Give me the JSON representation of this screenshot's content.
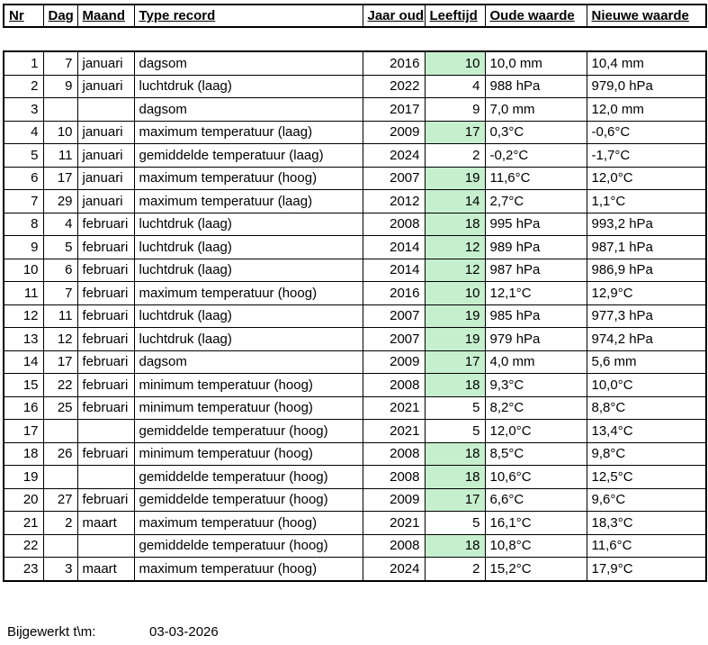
{
  "table": {
    "columns": [
      "Nr",
      "Dag",
      "Maand",
      "Type record",
      "Jaar oud",
      "Leeftijd",
      "Oude waarde",
      "Nieuwe waarde"
    ],
    "rows": [
      {
        "nr": "1",
        "dag": "7",
        "maand": "januari",
        "type_record": "dagsom",
        "jaar_oud": "2016",
        "leeftijd": "10",
        "leeftijd_gemarkeerd": true,
        "oude_waarde": "10,0 mm",
        "nieuwe_waarde": "10,4 mm"
      },
      {
        "nr": "2",
        "dag": "9",
        "maand": "januari",
        "type_record": "luchtdruk (laag)",
        "jaar_oud": "2022",
        "leeftijd": "4",
        "leeftijd_gemarkeerd": false,
        "oude_waarde": "988 hPa",
        "nieuwe_waarde": "979,0 hPa"
      },
      {
        "nr": "3",
        "dag": "",
        "maand": "",
        "type_record": "dagsom",
        "jaar_oud": "2017",
        "leeftijd": "9",
        "leeftijd_gemarkeerd": false,
        "oude_waarde": "7,0 mm",
        "nieuwe_waarde": "12,0 mm"
      },
      {
        "nr": "4",
        "dag": "10",
        "maand": "januari",
        "type_record": "maximum temperatuur (laag)",
        "jaar_oud": "2009",
        "leeftijd": "17",
        "leeftijd_gemarkeerd": true,
        "oude_waarde": "0,3°C",
        "nieuwe_waarde": "-0,6°C"
      },
      {
        "nr": "5",
        "dag": "11",
        "maand": "januari",
        "type_record": "gemiddelde temperatuur (laag)",
        "jaar_oud": "2024",
        "leeftijd": "2",
        "leeftijd_gemarkeerd": false,
        "oude_waarde": "-0,2°C",
        "nieuwe_waarde": "-1,7°C"
      },
      {
        "nr": "6",
        "dag": "17",
        "maand": "januari",
        "type_record": "maximum temperatuur (hoog)",
        "jaar_oud": "2007",
        "leeftijd": "19",
        "leeftijd_gemarkeerd": true,
        "oude_waarde": "11,6°C",
        "nieuwe_waarde": "12,0°C"
      },
      {
        "nr": "7",
        "dag": "29",
        "maand": "januari",
        "type_record": "maximum temperatuur (laag)",
        "jaar_oud": "2012",
        "leeftijd": "14",
        "leeftijd_gemarkeerd": true,
        "oude_waarde": "2,7°C",
        "nieuwe_waarde": "1,1°C"
      },
      {
        "nr": "8",
        "dag": "4",
        "maand": "februari",
        "type_record": "luchtdruk (laag)",
        "jaar_oud": "2008",
        "leeftijd": "18",
        "leeftijd_gemarkeerd": true,
        "oude_waarde": "995 hPa",
        "nieuwe_waarde": "993,2 hPa"
      },
      {
        "nr": "9",
        "dag": "5",
        "maand": "februari",
        "type_record": "luchtdruk (laag)",
        "jaar_oud": "2014",
        "leeftijd": "12",
        "leeftijd_gemarkeerd": true,
        "oude_waarde": "989 hPa",
        "nieuwe_waarde": "987,1 hPa"
      },
      {
        "nr": "10",
        "dag": "6",
        "maand": "februari",
        "type_record": "luchtdruk (laag)",
        "jaar_oud": "2014",
        "leeftijd": "12",
        "leeftijd_gemarkeerd": true,
        "oude_waarde": "987 hPa",
        "nieuwe_waarde": "986,9 hPa"
      },
      {
        "nr": "11",
        "dag": "7",
        "maand": "februari",
        "type_record": "maximum temperatuur (hoog)",
        "jaar_oud": "2016",
        "leeftijd": "10",
        "leeftijd_gemarkeerd": true,
        "oude_waarde": "12,1°C",
        "nieuwe_waarde": "12,9°C"
      },
      {
        "nr": "12",
        "dag": "11",
        "maand": "februari",
        "type_record": "luchtdruk (laag)",
        "jaar_oud": "2007",
        "leeftijd": "19",
        "leeftijd_gemarkeerd": true,
        "oude_waarde": "985 hPa",
        "nieuwe_waarde": "977,3 hPa"
      },
      {
        "nr": "13",
        "dag": "12",
        "maand": "februari",
        "type_record": "luchtdruk (laag)",
        "jaar_oud": "2007",
        "leeftijd": "19",
        "leeftijd_gemarkeerd": true,
        "oude_waarde": "979 hPa",
        "nieuwe_waarde": "974,2 hPa"
      },
      {
        "nr": "14",
        "dag": "17",
        "maand": "februari",
        "type_record": "dagsom",
        "jaar_oud": "2009",
        "leeftijd": "17",
        "leeftijd_gemarkeerd": true,
        "oude_waarde": "4,0 mm",
        "nieuwe_waarde": "5,6 mm"
      },
      {
        "nr": "15",
        "dag": "22",
        "maand": "februari",
        "type_record": "minimum temperatuur (hoog)",
        "jaar_oud": "2008",
        "leeftijd": "18",
        "leeftijd_gemarkeerd": true,
        "oude_waarde": "9,3°C",
        "nieuwe_waarde": "10,0°C"
      },
      {
        "nr": "16",
        "dag": "25",
        "maand": "februari",
        "type_record": "minimum temperatuur (hoog)",
        "jaar_oud": "2021",
        "leeftijd": "5",
        "leeftijd_gemarkeerd": false,
        "oude_waarde": "8,2°C",
        "nieuwe_waarde": "8,8°C"
      },
      {
        "nr": "17",
        "dag": "",
        "maand": "",
        "type_record": "gemiddelde temperatuur (hoog)",
        "jaar_oud": "2021",
        "leeftijd": "5",
        "leeftijd_gemarkeerd": false,
        "oude_waarde": "12,0°C",
        "nieuwe_waarde": "13,4°C"
      },
      {
        "nr": "18",
        "dag": "26",
        "maand": "februari",
        "type_record": "minimum temperatuur (hoog)",
        "jaar_oud": "2008",
        "leeftijd": "18",
        "leeftijd_gemarkeerd": true,
        "oude_waarde": "8,5°C",
        "nieuwe_waarde": "9,8°C"
      },
      {
        "nr": "19",
        "dag": "",
        "maand": "",
        "type_record": "gemiddelde temperatuur (hoog)",
        "jaar_oud": "2008",
        "leeftijd": "18",
        "leeftijd_gemarkeerd": true,
        "oude_waarde": "10,6°C",
        "nieuwe_waarde": "12,5°C"
      },
      {
        "nr": "20",
        "dag": "27",
        "maand": "februari",
        "type_record": "gemiddelde temperatuur (hoog)",
        "jaar_oud": "2009",
        "leeftijd": "17",
        "leeftijd_gemarkeerd": true,
        "oude_waarde": "6,6°C",
        "nieuwe_waarde": "9,6°C"
      },
      {
        "nr": "21",
        "dag": "2",
        "maand": "maart",
        "type_record": "maximum temperatuur (hoog)",
        "jaar_oud": "2021",
        "leeftijd": "5",
        "leeftijd_gemarkeerd": false,
        "oude_waarde": "16,1°C",
        "nieuwe_waarde": "18,3°C"
      },
      {
        "nr": "22",
        "dag": "",
        "maand": "",
        "type_record": "gemiddelde temperatuur (hoog)",
        "jaar_oud": "2008",
        "leeftijd": "18",
        "leeftijd_gemarkeerd": true,
        "oude_waarde": "10,8°C",
        "nieuwe_waarde": "11,6°C"
      },
      {
        "nr": "23",
        "dag": "3",
        "maand": "maart",
        "type_record": "maximum temperatuur (hoog)",
        "jaar_oud": "2024",
        "leeftijd": "2",
        "leeftijd_gemarkeerd": false,
        "oude_waarde": "15,2°C",
        "nieuwe_waarde": "17,9°C"
      }
    ]
  },
  "footer": {
    "label": "Bijgewerkt t\\m:",
    "date": "03-03-2026"
  },
  "colors": {
    "highlight_green": "#C6EFCE",
    "border": "#000000",
    "background": "#FFFFFF"
  }
}
